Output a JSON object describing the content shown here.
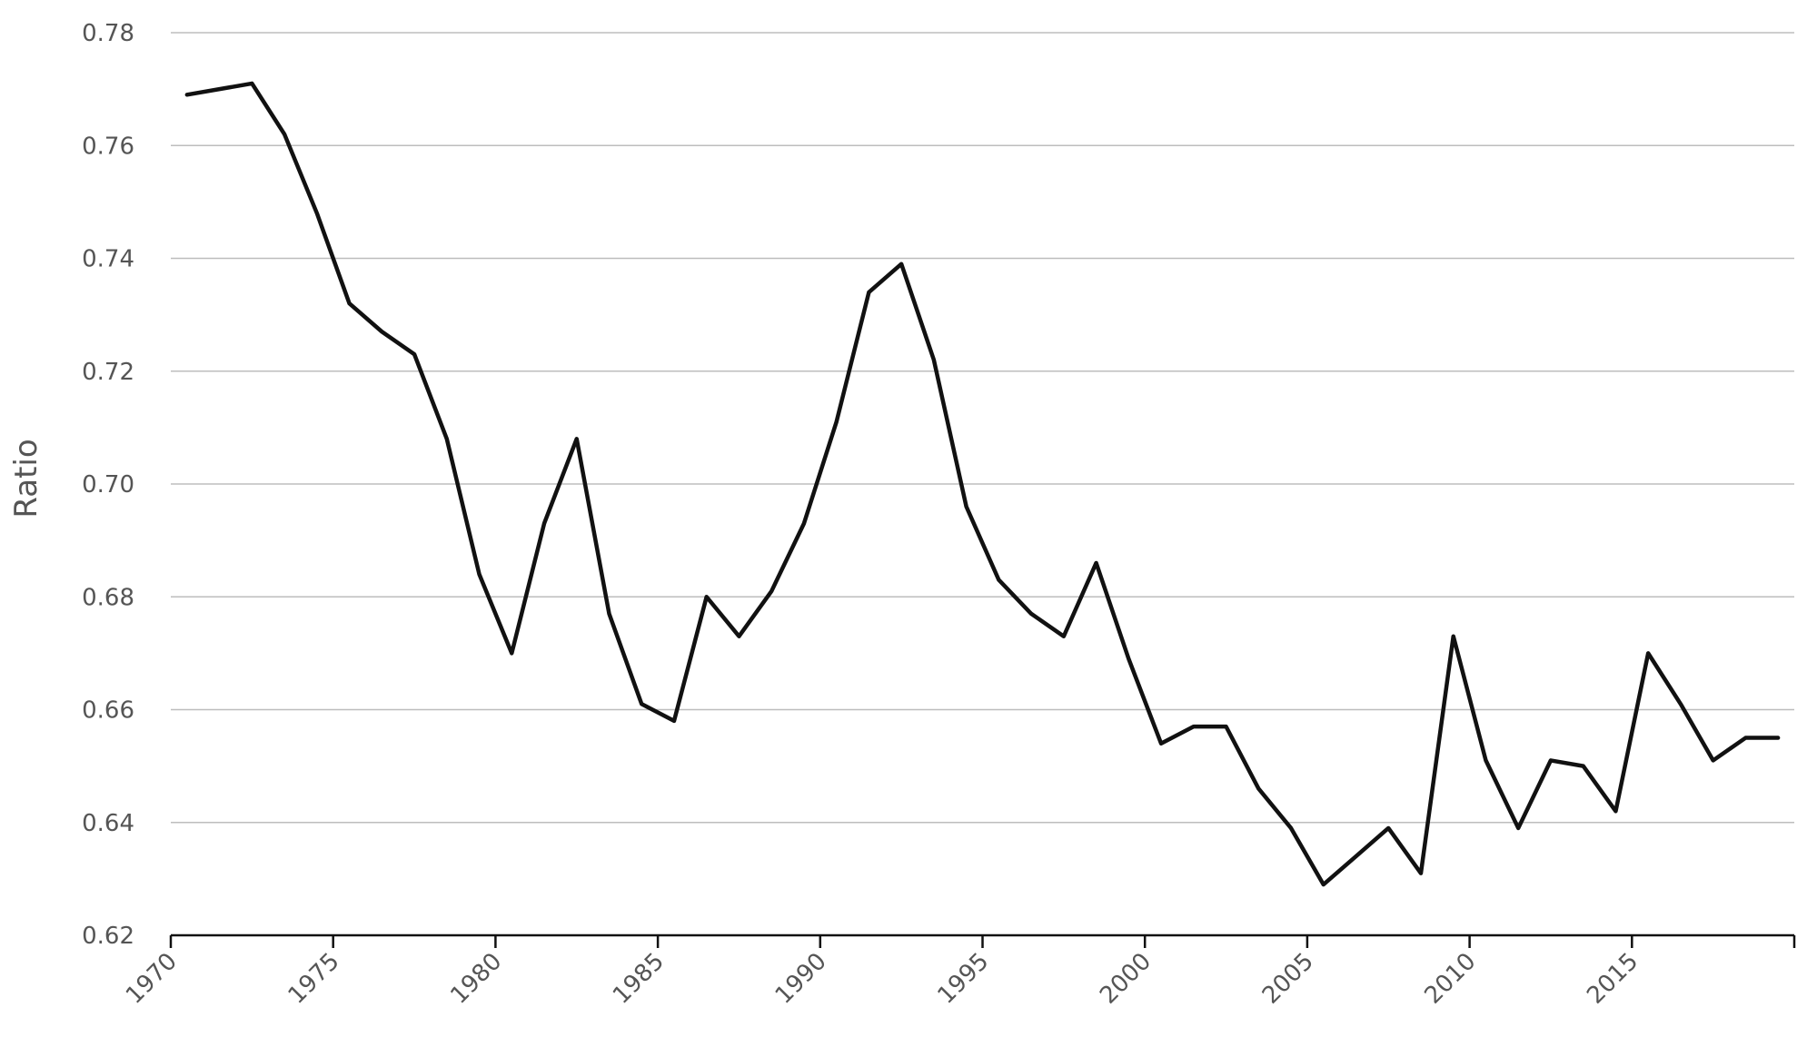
{
  "chart_data": {
    "type": "line",
    "title": "",
    "xlabel": "",
    "ylabel": "Ratio",
    "xlim": [
      1970,
      2020
    ],
    "ylim": [
      0.62,
      0.78
    ],
    "y_ticks": [
      0.62,
      0.64,
      0.66,
      0.68,
      0.7,
      0.72,
      0.74,
      0.76,
      0.78
    ],
    "y_tick_labels": [
      "0.62",
      "0.64",
      "0.66",
      "0.68",
      "0.70",
      "0.72",
      "0.74",
      "0.76",
      "0.78"
    ],
    "x_ticks": [
      1970,
      1975,
      1980,
      1985,
      1990,
      1995,
      2000,
      2005,
      2010,
      2015
    ],
    "x_tick_labels": [
      "1970",
      "1975",
      "1980",
      "1985",
      "1990",
      "1995",
      "2000",
      "2005",
      "2010",
      "2015"
    ],
    "grid": "horizontal",
    "legend": "none",
    "colors": {
      "line": "#111111",
      "grid": "#bdbdbd",
      "axis": "#111111",
      "text": "#555555"
    },
    "series": [
      {
        "x": [
          1970,
          1971,
          1972,
          1973,
          1974,
          1975,
          1976,
          1977,
          1978,
          1979,
          1980,
          1981,
          1982,
          1983,
          1984,
          1985,
          1986,
          1987,
          1988,
          1989,
          1990,
          1991,
          1992,
          1993,
          1994,
          1995,
          1996,
          1997,
          1998,
          1999,
          2000,
          2001,
          2002,
          2003,
          2004,
          2005,
          2006,
          2007,
          2008,
          2009,
          2010,
          2011,
          2012,
          2013,
          2014,
          2015,
          2016,
          2017,
          2018,
          2019
        ],
        "values": [
          0.769,
          0.77,
          0.771,
          0.762,
          0.748,
          0.732,
          0.727,
          0.723,
          0.708,
          0.684,
          0.67,
          0.693,
          0.708,
          0.677,
          0.661,
          0.658,
          0.68,
          0.673,
          0.681,
          0.693,
          0.711,
          0.734,
          0.739,
          0.722,
          0.696,
          0.683,
          0.677,
          0.673,
          0.686,
          0.669,
          0.654,
          0.657,
          0.657,
          0.646,
          0.639,
          0.629,
          0.634,
          0.639,
          0.631,
          0.673,
          0.651,
          0.639,
          0.651,
          0.65,
          0.642,
          0.67,
          0.661,
          0.651,
          0.655,
          0.655
        ]
      }
    ]
  }
}
